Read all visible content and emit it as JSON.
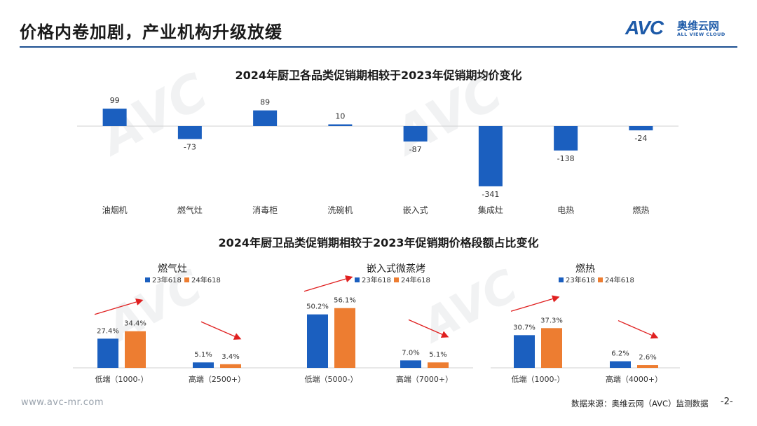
{
  "page": {
    "title": "价格内卷加剧，产业机构升级放缓",
    "footer_url": "www.avc-mr.com",
    "footer_source": "数据来源：奥维云网（AVC）监测数据",
    "page_number": "-2-"
  },
  "logo": {
    "mark": "AVC",
    "cn": "奥维云网",
    "en": "ALL VIEW CLOUD"
  },
  "colors": {
    "blue": "#1b5fbf",
    "orange": "#ed7d31",
    "arrow": "#e02020",
    "rule": "#1d4f91"
  },
  "chart_data": [
    {
      "type": "bar",
      "title": "2024年厨卫各品类促销期相较于2023年促销期均价变化",
      "categories": [
        "油烟机",
        "燃气灶",
        "消毒柜",
        "洗碗机",
        "嵌入式",
        "集成灶",
        "电热",
        "燃热"
      ],
      "values": [
        99,
        -73,
        89,
        10,
        -87,
        -341,
        -138,
        -24
      ],
      "labels": [
        "99",
        "-73",
        "89",
        "10",
        "-87",
        "-341",
        "-138",
        "-24"
      ],
      "color": "#1b5fbf"
    },
    {
      "type": "bar",
      "group_title": "2024年厨卫品类促销期相较于2023年促销期价格段额占比变化",
      "title": "燃气灶",
      "categories": [
        "低端（1000-）",
        "高端（2500+）"
      ],
      "series": [
        {
          "name": "23年618",
          "values": [
            27.4,
            5.1
          ],
          "labels": [
            "27.4%",
            "5.1%"
          ]
        },
        {
          "name": "24年618",
          "values": [
            34.4,
            3.4
          ],
          "labels": [
            "34.4%",
            "3.4%"
          ]
        }
      ],
      "trend": [
        "up",
        "down"
      ]
    },
    {
      "type": "bar",
      "group_title": "2024年厨卫品类促销期相较于2023年促销期价格段额占比变化",
      "title": "嵌入式微蒸烤",
      "categories": [
        "低端（5000-）",
        "高端（7000+）"
      ],
      "series": [
        {
          "name": "23年618",
          "values": [
            50.2,
            7.0
          ],
          "labels": [
            "50.2%",
            "7.0%"
          ]
        },
        {
          "name": "24年618",
          "values": [
            56.1,
            5.1
          ],
          "labels": [
            "56.1%",
            "5.1%"
          ]
        }
      ],
      "trend": [
        "up",
        "down"
      ]
    },
    {
      "type": "bar",
      "group_title": "2024年厨卫品类促销期相较于2023年促销期价格段额占比变化",
      "title": "燃热",
      "categories": [
        "低端（1000-）",
        "高端（4000+）"
      ],
      "series": [
        {
          "name": "23年618",
          "values": [
            30.7,
            6.2
          ],
          "labels": [
            "30.7%",
            "6.2%"
          ]
        },
        {
          "name": "24年618",
          "values": [
            37.3,
            2.6
          ],
          "labels": [
            "37.3%",
            "2.6%"
          ]
        }
      ],
      "trend": [
        "up",
        "down"
      ]
    }
  ]
}
